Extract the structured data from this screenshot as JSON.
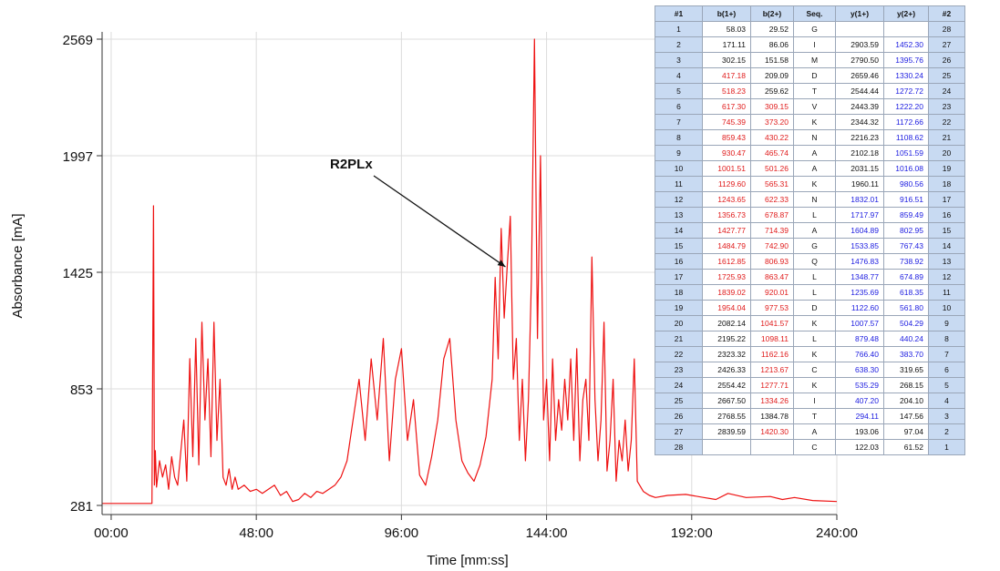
{
  "chart_data": {
    "type": "line",
    "xlabel": "Time [mm:ss]",
    "ylabel": "Absorbance [mA]",
    "x_ticks": [
      "00:00",
      "48:00",
      "96:00",
      "144:00",
      "192:00",
      "240:00"
    ],
    "y_ticks": [
      "281",
      "853",
      "1425",
      "1997",
      "2569"
    ],
    "xlim_minutes": [
      -3,
      240
    ],
    "ylim": [
      281,
      2569
    ],
    "grid": true,
    "series_color": "#ee1111",
    "annotation": {
      "text": "R2PLx",
      "x_minutes": 131,
      "y": 1425
    },
    "series": [
      {
        "x_minutes": [
          -3,
          13.5,
          14,
          14.3,
          14.6,
          15,
          16,
          17,
          18,
          19,
          20,
          21,
          22,
          24,
          25,
          26,
          27,
          28,
          29,
          30,
          31,
          32,
          33,
          34,
          35,
          36,
          37,
          38,
          39,
          40,
          41,
          42,
          44,
          46,
          48,
          50,
          52,
          54,
          56,
          58,
          60,
          62,
          64,
          66,
          68,
          70,
          72,
          74,
          76,
          78,
          80,
          82,
          84,
          86,
          88,
          90,
          92,
          94,
          96,
          98,
          100,
          102,
          104,
          106,
          108,
          110,
          112,
          114,
          116,
          118,
          120,
          122,
          124,
          126,
          127,
          128,
          129,
          130,
          131,
          132,
          133,
          134,
          135,
          136,
          137,
          138,
          139,
          140,
          141,
          142,
          143,
          144,
          145,
          146,
          147,
          148,
          149,
          150,
          151,
          152,
          153,
          154,
          155,
          156,
          157,
          158,
          159,
          160,
          161,
          162,
          163,
          164,
          165,
          166,
          167,
          168,
          169,
          170,
          171,
          172,
          173,
          174,
          176,
          178,
          180,
          184,
          190,
          196,
          200,
          204,
          210,
          218,
          222,
          226,
          232,
          240
        ],
        "y": [
          291,
          291,
          1751,
          381,
          550,
          371,
          500,
          420,
          480,
          360,
          520,
          420,
          380,
          700,
          400,
          1001,
          520,
          1100,
          480,
          1180,
          700,
          1000,
          520,
          1180,
          600,
          900,
          420,
          380,
          460,
          360,
          420,
          360,
          380,
          350,
          360,
          340,
          360,
          380,
          330,
          350,
          300,
          310,
          340,
          320,
          350,
          340,
          360,
          380,
          420,
          500,
          700,
          900,
          600,
          1000,
          700,
          1100,
          500,
          900,
          1050,
          600,
          800,
          430,
          380,
          520,
          700,
          1000,
          1100,
          700,
          500,
          440,
          400,
          480,
          620,
          900,
          1400,
          1000,
          1640,
          1200,
          1460,
          1700,
          900,
          1100,
          600,
          900,
          500,
          800,
          1400,
          2569,
          1100,
          1997,
          700,
          900,
          500,
          1000,
          600,
          800,
          650,
          900,
          700,
          1000,
          600,
          1050,
          500,
          800,
          900,
          600,
          1500,
          800,
          500,
          700,
          1180,
          450,
          600,
          900,
          400,
          600,
          500,
          700,
          450,
          600,
          1000,
          400,
          350,
          330,
          320,
          330,
          335,
          320,
          310,
          340,
          320,
          325,
          310,
          320,
          305,
          300
        ]
      }
    ]
  },
  "fragment_table": {
    "headers": [
      "#1",
      "b(1+)",
      "b(2+)",
      "Seq.",
      "y(1+)",
      "y(2+)",
      "#2"
    ],
    "rows": [
      {
        "n1": "1",
        "b1": "58.03",
        "b2": "29.52",
        "seq": "G",
        "y1": "",
        "y2": "",
        "n2": "28",
        "b1c": "k",
        "b2c": "k",
        "y1c": "k",
        "y2c": "k"
      },
      {
        "n1": "2",
        "b1": "171.11",
        "b2": "86.06",
        "seq": "I",
        "y1": "2903.59",
        "y2": "1452.30",
        "n2": "27",
        "b1c": "k",
        "b2c": "k",
        "y1c": "k",
        "y2c": "b"
      },
      {
        "n1": "3",
        "b1": "302.15",
        "b2": "151.58",
        "seq": "M",
        "y1": "2790.50",
        "y2": "1395.76",
        "n2": "26",
        "b1c": "k",
        "b2c": "k",
        "y1c": "k",
        "y2c": "b"
      },
      {
        "n1": "4",
        "b1": "417.18",
        "b2": "209.09",
        "seq": "D",
        "y1": "2659.46",
        "y2": "1330.24",
        "n2": "25",
        "b1c": "r",
        "b2c": "k",
        "y1c": "k",
        "y2c": "b"
      },
      {
        "n1": "5",
        "b1": "518.23",
        "b2": "259.62",
        "seq": "T",
        "y1": "2544.44",
        "y2": "1272.72",
        "n2": "24",
        "b1c": "r",
        "b2c": "k",
        "y1c": "k",
        "y2c": "b"
      },
      {
        "n1": "6",
        "b1": "617.30",
        "b2": "309.15",
        "seq": "V",
        "y1": "2443.39",
        "y2": "1222.20",
        "n2": "23",
        "b1c": "r",
        "b2c": "r",
        "y1c": "k",
        "y2c": "b"
      },
      {
        "n1": "7",
        "b1": "745.39",
        "b2": "373.20",
        "seq": "K",
        "y1": "2344.32",
        "y2": "1172.66",
        "n2": "22",
        "b1c": "r",
        "b2c": "r",
        "y1c": "k",
        "y2c": "b"
      },
      {
        "n1": "8",
        "b1": "859.43",
        "b2": "430.22",
        "seq": "N",
        "y1": "2216.23",
        "y2": "1108.62",
        "n2": "21",
        "b1c": "r",
        "b2c": "r",
        "y1c": "k",
        "y2c": "b"
      },
      {
        "n1": "9",
        "b1": "930.47",
        "b2": "465.74",
        "seq": "A",
        "y1": "2102.18",
        "y2": "1051.59",
        "n2": "20",
        "b1c": "r",
        "b2c": "r",
        "y1c": "k",
        "y2c": "b"
      },
      {
        "n1": "10",
        "b1": "1001.51",
        "b2": "501.26",
        "seq": "A",
        "y1": "2031.15",
        "y2": "1016.08",
        "n2": "19",
        "b1c": "r",
        "b2c": "r",
        "y1c": "k",
        "y2c": "b"
      },
      {
        "n1": "11",
        "b1": "1129.60",
        "b2": "565.31",
        "seq": "K",
        "y1": "1960.11",
        "y2": "980.56",
        "n2": "18",
        "b1c": "r",
        "b2c": "r",
        "y1c": "k",
        "y2c": "b"
      },
      {
        "n1": "12",
        "b1": "1243.65",
        "b2": "622.33",
        "seq": "N",
        "y1": "1832.01",
        "y2": "916.51",
        "n2": "17",
        "b1c": "r",
        "b2c": "r",
        "y1c": "b",
        "y2c": "b"
      },
      {
        "n1": "13",
        "b1": "1356.73",
        "b2": "678.87",
        "seq": "L",
        "y1": "1717.97",
        "y2": "859.49",
        "n2": "16",
        "b1c": "r",
        "b2c": "r",
        "y1c": "b",
        "y2c": "b"
      },
      {
        "n1": "14",
        "b1": "1427.77",
        "b2": "714.39",
        "seq": "A",
        "y1": "1604.89",
        "y2": "802.95",
        "n2": "15",
        "b1c": "r",
        "b2c": "r",
        "y1c": "b",
        "y2c": "b"
      },
      {
        "n1": "15",
        "b1": "1484.79",
        "b2": "742.90",
        "seq": "G",
        "y1": "1533.85",
        "y2": "767.43",
        "n2": "14",
        "b1c": "r",
        "b2c": "r",
        "y1c": "b",
        "y2c": "b"
      },
      {
        "n1": "16",
        "b1": "1612.85",
        "b2": "806.93",
        "seq": "Q",
        "y1": "1476.83",
        "y2": "738.92",
        "n2": "13",
        "b1c": "r",
        "b2c": "r",
        "y1c": "b",
        "y2c": "b"
      },
      {
        "n1": "17",
        "b1": "1725.93",
        "b2": "863.47",
        "seq": "L",
        "y1": "1348.77",
        "y2": "674.89",
        "n2": "12",
        "b1c": "r",
        "b2c": "r",
        "y1c": "b",
        "y2c": "b"
      },
      {
        "n1": "18",
        "b1": "1839.02",
        "b2": "920.01",
        "seq": "L",
        "y1": "1235.69",
        "y2": "618.35",
        "n2": "11",
        "b1c": "r",
        "b2c": "r",
        "y1c": "b",
        "y2c": "b"
      },
      {
        "n1": "19",
        "b1": "1954.04",
        "b2": "977.53",
        "seq": "D",
        "y1": "1122.60",
        "y2": "561.80",
        "n2": "10",
        "b1c": "r",
        "b2c": "r",
        "y1c": "b",
        "y2c": "b"
      },
      {
        "n1": "20",
        "b1": "2082.14",
        "b2": "1041.57",
        "seq": "K",
        "y1": "1007.57",
        "y2": "504.29",
        "n2": "9",
        "b1c": "k",
        "b2c": "r",
        "y1c": "b",
        "y2c": "b"
      },
      {
        "n1": "21",
        "b1": "2195.22",
        "b2": "1098.11",
        "seq": "L",
        "y1": "879.48",
        "y2": "440.24",
        "n2": "8",
        "b1c": "k",
        "b2c": "r",
        "y1c": "b",
        "y2c": "b"
      },
      {
        "n1": "22",
        "b1": "2323.32",
        "b2": "1162.16",
        "seq": "K",
        "y1": "766.40",
        "y2": "383.70",
        "n2": "7",
        "b1c": "k",
        "b2c": "r",
        "y1c": "b",
        "y2c": "b"
      },
      {
        "n1": "23",
        "b1": "2426.33",
        "b2": "1213.67",
        "seq": "C",
        "y1": "638.30",
        "y2": "319.65",
        "n2": "6",
        "b1c": "k",
        "b2c": "r",
        "y1c": "b",
        "y2c": "k"
      },
      {
        "n1": "24",
        "b1": "2554.42",
        "b2": "1277.71",
        "seq": "K",
        "y1": "535.29",
        "y2": "268.15",
        "n2": "5",
        "b1c": "k",
        "b2c": "r",
        "y1c": "b",
        "y2c": "k"
      },
      {
        "n1": "25",
        "b1": "2667.50",
        "b2": "1334.26",
        "seq": "I",
        "y1": "407.20",
        "y2": "204.10",
        "n2": "4",
        "b1c": "k",
        "b2c": "r",
        "y1c": "b",
        "y2c": "k"
      },
      {
        "n1": "26",
        "b1": "2768.55",
        "b2": "1384.78",
        "seq": "T",
        "y1": "294.11",
        "y2": "147.56",
        "n2": "3",
        "b1c": "k",
        "b2c": "k",
        "y1c": "b",
        "y2c": "k"
      },
      {
        "n1": "27",
        "b1": "2839.59",
        "b2": "1420.30",
        "seq": "A",
        "y1": "193.06",
        "y2": "97.04",
        "n2": "2",
        "b1c": "k",
        "b2c": "r",
        "y1c": "k",
        "y2c": "k"
      },
      {
        "n1": "28",
        "b1": "",
        "b2": "",
        "seq": "C",
        "y1": "122.03",
        "y2": "61.52",
        "n2": "1",
        "b1c": "k",
        "b2c": "k",
        "y1c": "k",
        "y2c": "k"
      }
    ]
  },
  "colors": {
    "red": "#e01b1b",
    "blue": "#1c1ce0",
    "header_bg": "#c8daf2"
  }
}
